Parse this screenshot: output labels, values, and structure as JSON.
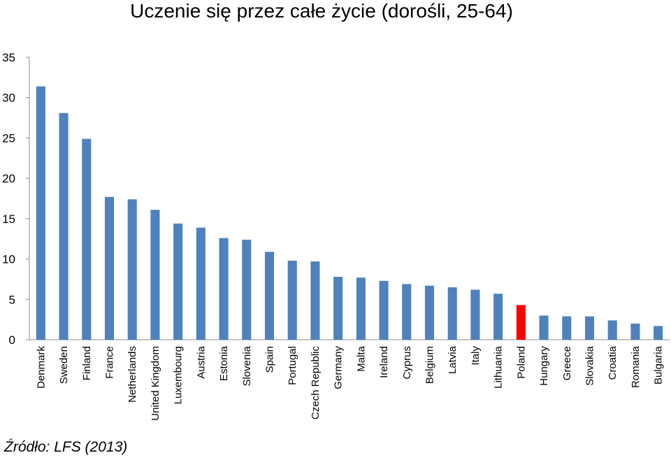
{
  "chart_data": {
    "type": "bar",
    "title": "Uczenie się przez całe życie (dorośli, 25-64)",
    "categories": [
      "Denmark",
      "Sweden",
      "Finland",
      "France",
      "Netherlands",
      "United Kingdom",
      "Luxembourg",
      "Austria",
      "Estonia",
      "Slovenia",
      "Spain",
      "Portugal",
      "Czech Republic",
      "Germany",
      "Malta",
      "Ireland",
      "Cyprus",
      "Belgium",
      "Latvia",
      "Italy",
      "Lithuania",
      "Poland",
      "Hungary",
      "Greece",
      "Slovakia",
      "Croatia",
      "Romania",
      "Bulgaria"
    ],
    "values": [
      31.4,
      28.1,
      24.9,
      17.7,
      17.4,
      16.1,
      14.4,
      13.9,
      12.6,
      12.4,
      10.9,
      9.8,
      9.7,
      7.8,
      7.7,
      7.3,
      6.9,
      6.7,
      6.5,
      6.2,
      5.7,
      4.3,
      3.0,
      2.9,
      2.9,
      2.4,
      2.0,
      1.7
    ],
    "highlight": "Poland",
    "ylim": [
      0,
      35
    ],
    "yticks": [
      0,
      5,
      10,
      15,
      20,
      25,
      30,
      35
    ],
    "xlabel": "",
    "ylabel": "",
    "grid": false,
    "colors": {
      "bar": "#4F81BD",
      "highlight": "#FF0000",
      "axis": "#8C8C8C"
    }
  },
  "source": "Źródło: LFS (2013)"
}
